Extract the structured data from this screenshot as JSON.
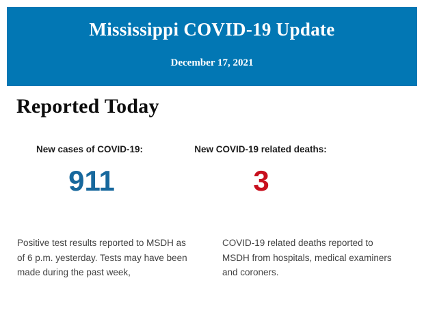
{
  "banner": {
    "title": "Mississippi COVID-19 Update",
    "date": "December 17, 2021",
    "bg_color": "#0277b4",
    "text_color": "#ffffff"
  },
  "main": {
    "heading": "Reported Today",
    "stats": [
      {
        "label": "New cases of COVID-19:",
        "value": "911",
        "value_color": "#17689d",
        "description_lines": [
          "Positive test results reported to MSDH as",
          "of 6 p.m. yesterday. Tests may have been",
          "made during the past week,"
        ]
      },
      {
        "label": "New COVID-19 related deaths:",
        "value": "3",
        "value_color": "#c8101e",
        "description_lines": [
          "COVID-19 related deaths reported to",
          "MSDH from hospitals, medical examiners",
          "and coroners."
        ]
      }
    ]
  }
}
